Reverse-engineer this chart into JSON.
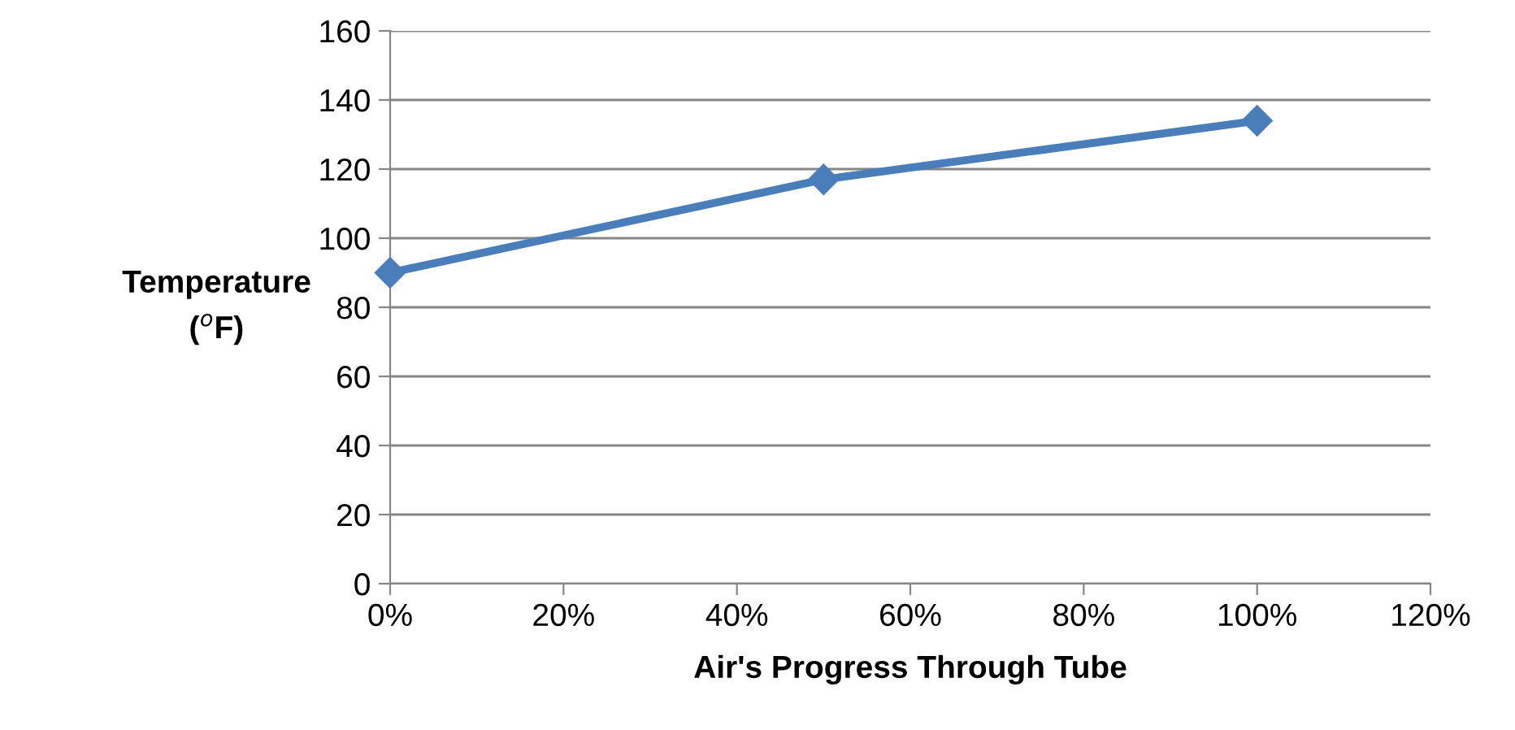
{
  "chart_data": {
    "type": "line",
    "xlabel": "Air's Progress Through Tube",
    "ylabel": "Temperature\n($^{o}$F)",
    "x": [
      0,
      50,
      100
    ],
    "series": [
      {
        "color": "#4a7ebb",
        "values": [
          90,
          117,
          134
        ]
      }
    ],
    "xlim": [
      0,
      120
    ],
    "xticks": [
      {
        "value": 0,
        "label": "0%"
      },
      {
        "value": 20,
        "label": "20%"
      },
      {
        "value": 40,
        "label": "40%"
      },
      {
        "value": 60,
        "label": "60%"
      },
      {
        "value": 80,
        "label": "80%"
      },
      {
        "value": 100,
        "label": "100%"
      },
      {
        "value": 120,
        "label": "120%"
      }
    ],
    "ylim": [
      0,
      160
    ],
    "yticks": [
      0,
      20,
      40,
      60,
      80,
      100,
      120,
      140,
      160
    ],
    "grid": "y",
    "marker": "diamond",
    "line_style": "solid",
    "legend": false
  }
}
